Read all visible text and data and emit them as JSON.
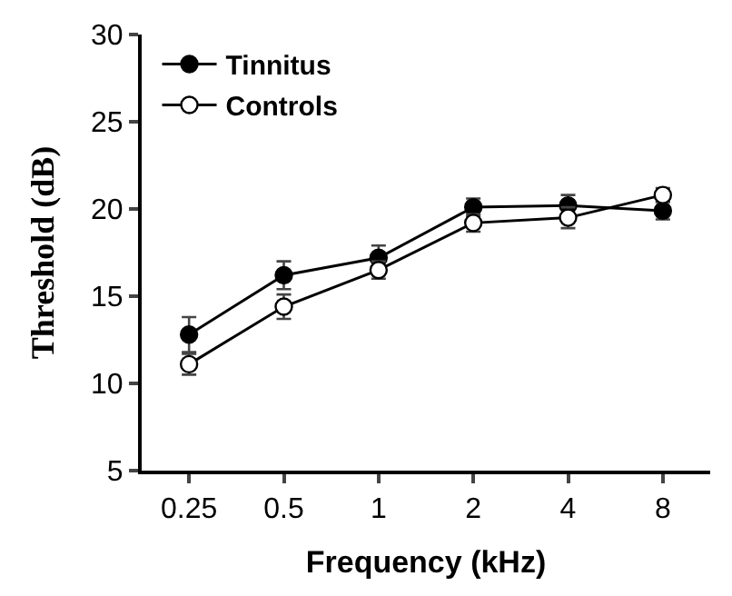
{
  "chart_data": {
    "type": "line",
    "xlabel": "Frequency (kHz)",
    "ylabel": "Threshold (dB)",
    "categories": [
      "0.25",
      "0.5",
      "1",
      "2",
      "4",
      "8"
    ],
    "series": [
      {
        "name": "Tinnitus",
        "color": "#000000",
        "values": [
          12.8,
          16.2,
          17.2,
          20.1,
          20.2,
          19.9
        ],
        "errors": [
          1.0,
          0.8,
          0.7,
          0.5,
          0.6,
          0.5
        ]
      },
      {
        "name": "Controls",
        "color": "#000000",
        "values": [
          11.1,
          14.4,
          16.5,
          19.2,
          19.5,
          20.8
        ],
        "errors": [
          0.6,
          0.7,
          0.5,
          0.5,
          0.6,
          0.4
        ]
      }
    ],
    "ylim": [
      5,
      30
    ],
    "yticks": [
      5,
      10,
      15,
      20,
      25,
      30
    ],
    "legend": "top left",
    "marker": "circle",
    "line_style": "solid"
  }
}
